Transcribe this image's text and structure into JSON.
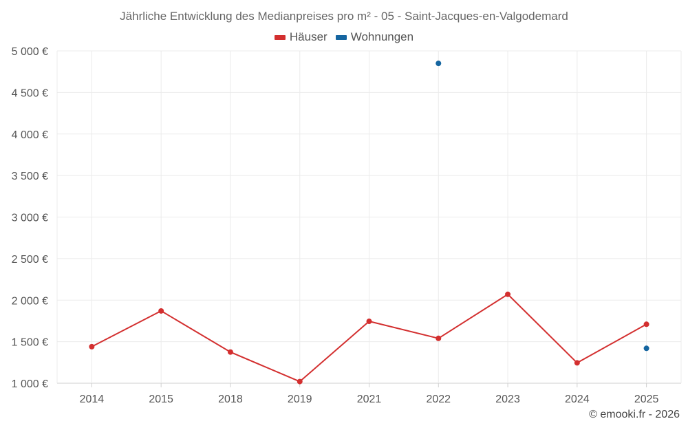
{
  "title": "Jährliche Entwicklung des Medianpreises pro m² - 05 - Saint-Jacques-en-Valgodemard",
  "credit": "© emooki.fr - 2026",
  "chart_data": {
    "type": "line",
    "categories": [
      "2014",
      "2015",
      "2018",
      "2019",
      "2021",
      "2022",
      "2023",
      "2024",
      "2025"
    ],
    "series": [
      {
        "name": "Häuser",
        "color": "#d32f2f",
        "values": [
          1440,
          1870,
          1375,
          1020,
          1745,
          1540,
          2070,
          1245,
          1710
        ]
      },
      {
        "name": "Wohnungen",
        "color": "#1565a0",
        "values": [
          null,
          null,
          null,
          null,
          null,
          4850,
          null,
          null,
          1420
        ]
      }
    ],
    "y_ticks": [
      "1 000 €",
      "1 500 €",
      "2 000 €",
      "2 500 €",
      "3 000 €",
      "3 500 €",
      "4 000 €",
      "4 500 €",
      "5 000 €"
    ],
    "ylim": [
      1000,
      5000
    ],
    "grid": true,
    "legend_position": "top-center"
  }
}
